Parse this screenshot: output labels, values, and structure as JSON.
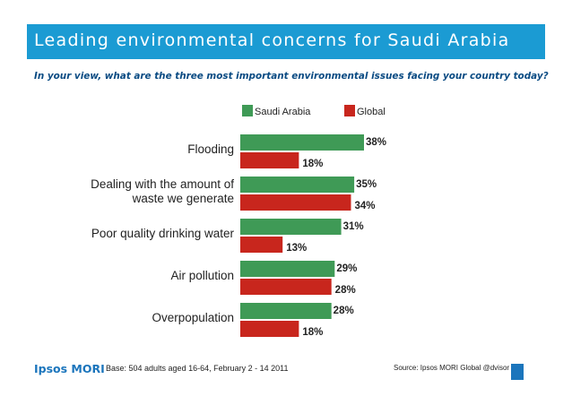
{
  "header": {
    "title": "Leading environmental concerns for Saudi Arabia",
    "subtitle": "In your view, what are the three most important environmental issues facing your country today?"
  },
  "colors": {
    "banner": "#1b9bd3",
    "saudi": "#3f9a56",
    "global": "#c8261d",
    "subtitle": "#0a4b83"
  },
  "chart_data": {
    "type": "bar",
    "orientation": "horizontal",
    "categories": [
      "Flooding",
      "Dealing with the amount of waste we generate",
      "Poor quality drinking water",
      "Air pollution",
      "Overpopulation"
    ],
    "category_lines": [
      [
        "Flooding"
      ],
      [
        "Dealing with the amount of",
        "waste we generate"
      ],
      [
        "Poor quality drinking water"
      ],
      [
        "Air pollution"
      ],
      [
        "Overpopulation"
      ]
    ],
    "series": [
      {
        "name": "Saudi Arabia",
        "values": [
          38,
          35,
          31,
          29,
          28
        ],
        "labels": [
          "38%",
          "35%",
          "31%",
          "29%",
          "28%"
        ]
      },
      {
        "name": "Global",
        "values": [
          18,
          34,
          13,
          28,
          18
        ],
        "labels": [
          "18%",
          "34%",
          "13%",
          "28%",
          "18%"
        ]
      }
    ],
    "xlim": [
      0,
      40
    ],
    "legend": "top",
    "grid": false
  },
  "footer": {
    "brand": "Ipsos MORI",
    "base": "Base: 504 adults aged 16-64, February 2 - 14 2011",
    "source": "Source: Ipsos MORI Global @dvisor"
  }
}
